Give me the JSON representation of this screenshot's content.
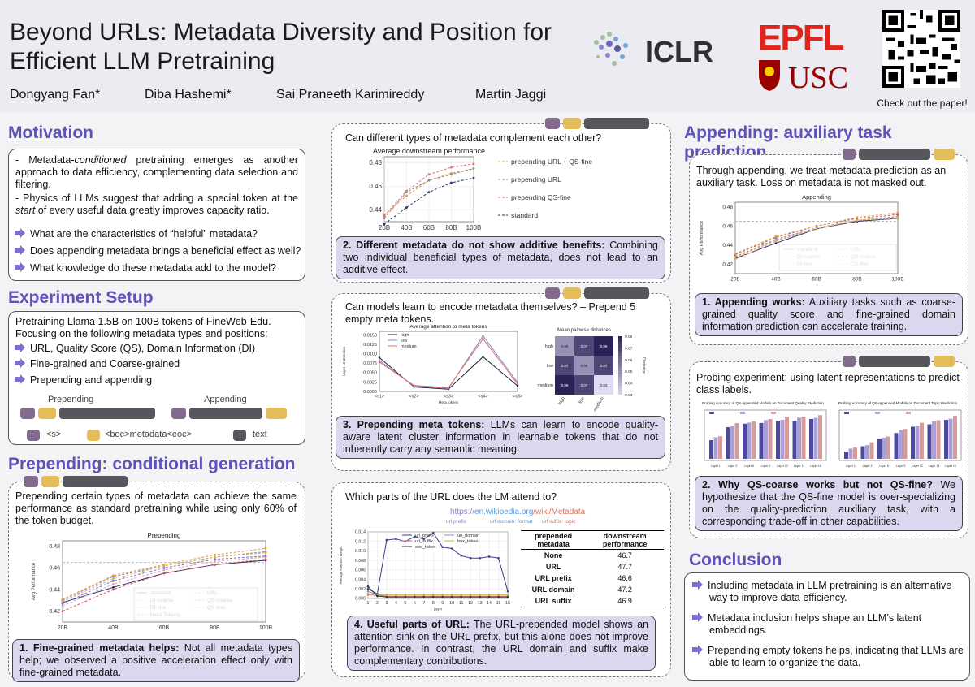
{
  "header": {
    "title_line1": "Beyond URLs: Metadata Diversity and Position for",
    "title_line2": "Efficient LLM Pretraining",
    "authors": [
      "Dongyang Fan*",
      "Diba Hashemi*",
      "Sai Praneeth Karimireddy",
      "Martin Jaggi"
    ],
    "logos": {
      "iclr": "ICLR",
      "epfl": "EPFL",
      "usc": "USC"
    },
    "qr_caption": "Check out the paper!"
  },
  "motivation": {
    "title": "Motivation",
    "p1_a": "- Metadata-",
    "p1_em": "conditioned",
    "p1_b": " pretraining emerges as another approach to data efficiency, complementing data selection and filtering.",
    "p2_a": "- Physics of LLMs suggest that adding a special token at the ",
    "p2_em": "start",
    "p2_b": " of every useful data greatly improves capacity ratio.",
    "questions": [
      "What are the characteristics of “helpful” metadata?",
      "Does appending metadata brings a beneficial effect as well?",
      "What knowledge do these metadata add to the model?"
    ]
  },
  "setup": {
    "title": "Experiment Setup",
    "intro": "Pretraining Llama 1.5B on 100B tokens of FineWeb-Edu. Focusing on the following metadata types and positions:",
    "items": [
      "URL, Quality Score (QS), Domain Information (DI)",
      "Fine-grained and Coarse-grained",
      "Prepending and appending"
    ],
    "prepending_label": "Prepending",
    "appending_label": "Appending",
    "legend_s": "<s>",
    "legend_meta": "<boc>metadata<eoc>",
    "legend_text": "text"
  },
  "prepending": {
    "title": "Prepending: conditional generation",
    "intro": "Prepending certain types of metadata can achieve the same performance as standard pretraining while using only 60% of the token budget.",
    "callout_bold": "1. Fine-grained metadata helps:",
    "callout_rest": " Not all metadata types help; we observed a positive acceleration effect only with fine-grained metadata."
  },
  "complement": {
    "question": "Can different types of metadata complement each other?",
    "callout_bold": "2. Different metadata do not show additive benefits:",
    "callout_rest": " Combining two individual beneficial types of metadata, does not lead to an additive effect."
  },
  "meta_tokens": {
    "question": "Can models learn to encode metadata themselves? – Prepend 5 empty meta tokens.",
    "callout_bold": "3. Prepending meta tokens:",
    "callout_rest": " LLMs can learn to encode quality-aware latent cluster information in learnable tokens that do not inherently carry any semantic meaning."
  },
  "url_attention": {
    "question": "Which parts of the URL does the LM attend to?",
    "url_scheme": "https://",
    "url_domain": "en.wikipedia.org",
    "url_path": "/wiki/Metadata",
    "url_prefix_label": "url prefix",
    "url_domain_label": "url domain: format",
    "url_suffix_label": "url suffix: topic",
    "table_header_1": "prepended metadata",
    "table_header_2": "downstream performance",
    "table_rows": [
      {
        "name": "None",
        "value": "46.7"
      },
      {
        "name": "URL",
        "value": "47.7"
      },
      {
        "name": "URL prefix",
        "value": "46.6"
      },
      {
        "name": "URL domain",
        "value": "47.2"
      },
      {
        "name": "URL suffix",
        "value": "46.9"
      }
    ],
    "callout_bold": "4. Useful parts of URL:",
    "callout_rest": " The URL-prepended model shows an attention sink on the URL prefix, but this alone does not improve performance. In contrast, the URL domain and suffix make complementary contributions."
  },
  "appending": {
    "title": "Appending: auxiliary task prediction",
    "intro": "Through appending, we treat metadata prediction as an auxiliary task. Loss on metadata is not masked out.",
    "callout_bold": "1. Appending works:",
    "callout_rest": " Auxiliary tasks such as coarse-grained quality score and fine-grained domain information prediction can accelerate training."
  },
  "probing": {
    "intro": "Probing experiment: using latent representations to predict class labels.",
    "plot1_title": "Probing Accuracy of QS-appended Models on Document Quality Prediction",
    "plot2_title": "Probing Accuracy of QS-appended Models on Document Topic Prediction",
    "callout_bold": "2. Why QS-coarse works but not QS-fine?",
    "callout_rest": " We hypothesize that the QS-fine model is over-specializing on the quality-prediction auxiliary task, with a corresponding trade-off in other capabilities."
  },
  "conclusion": {
    "title": "Conclusion",
    "items": [
      "Including metadata in LLM pretraining is an alternative way to improve data efficiency.",
      "Metadata inclusion helps shape an LLM’s latent embeddings.",
      "Prepending empty tokens helps, indicating that LLMs are able to learn to organize the data."
    ]
  },
  "colors": {
    "accent": "#5c52b8",
    "callout": "#dcd7ef",
    "chip_s": "#826b8d",
    "chip_meta": "#e2bd5a",
    "chip_text": "#55575c"
  },
  "chart_data": [
    {
      "type": "line",
      "title": "Prepending",
      "xlabel": "",
      "ylabel": "Avg Performance",
      "x": [
        "20B",
        "40B",
        "60B",
        "80B",
        "100B"
      ],
      "ylim": [
        0.41,
        0.485
      ],
      "yticks": [
        "0.42",
        "0.44",
        "0.46",
        "0.48"
      ],
      "series": [
        {
          "name": "standard",
          "values": [
            0.428,
            0.442,
            0.455,
            0.463,
            0.467
          ],
          "color": "#2b2d6e"
        },
        {
          "name": "URL",
          "values": [
            0.43,
            0.452,
            0.462,
            0.47,
            0.475
          ],
          "color": "#8b87c9"
        },
        {
          "name": "DI-coarse",
          "values": [
            0.425,
            0.445,
            0.458,
            0.466,
            0.47
          ],
          "color": "#e9a0a0"
        },
        {
          "name": "QS-coarse",
          "values": [
            0.42,
            0.44,
            0.455,
            0.463,
            0.468
          ],
          "color": "#c25a5a"
        },
        {
          "name": "DI-fine",
          "values": [
            0.431,
            0.453,
            0.463,
            0.472,
            0.478
          ],
          "color": "#e59a4a"
        },
        {
          "name": "QS-fine",
          "values": [
            0.429,
            0.45,
            0.462,
            0.47,
            0.474
          ],
          "color": "#c8b84a"
        },
        {
          "name": "Meta Tokens",
          "values": [
            0.427,
            0.448,
            0.46,
            0.468,
            0.471
          ],
          "color": "#7d6fd1"
        }
      ]
    },
    {
      "type": "line",
      "title": "Average downstream performance",
      "x": [
        "20B",
        "40B",
        "60B",
        "80B",
        "100B"
      ],
      "ylim": [
        0.43,
        0.485
      ],
      "yticks": [
        "0.44",
        "0.46",
        "0.48"
      ],
      "series": [
        {
          "name": "prepending URL + QS-fine",
          "values": [
            0.436,
            0.452,
            0.465,
            0.471,
            0.475
          ],
          "color": "#e59a4a"
        },
        {
          "name": "prepending URL",
          "values": [
            0.433,
            0.455,
            0.465,
            0.47,
            0.475
          ],
          "color": "#888888"
        },
        {
          "name": "prepending QS-fine",
          "values": [
            0.435,
            0.456,
            0.47,
            0.476,
            0.479
          ],
          "color": "#e07070"
        },
        {
          "name": "standard",
          "values": [
            0.428,
            0.442,
            0.455,
            0.463,
            0.467
          ],
          "color": "#2b2d6e"
        }
      ]
    },
    {
      "type": "line",
      "title": "Average attention to meta tokens",
      "xlabel": "Meta tokens",
      "ylabel": "Layer 16 attention",
      "x": [
        "<s1>",
        "<s2>",
        "<s3>",
        "<s4>",
        "<s5>"
      ],
      "ylim": [
        0,
        0.016
      ],
      "yticks": [
        "0.0000",
        "0.0025",
        "0.0050",
        "0.0075",
        "0.0100",
        "0.0125",
        "0.0150"
      ],
      "series": [
        {
          "name": "high",
          "values": [
            0.009,
            0.0012,
            0.0006,
            0.0092,
            0.0015
          ],
          "color": "#1d1f3a"
        },
        {
          "name": "low",
          "values": [
            0.0082,
            0.0014,
            0.0008,
            0.0148,
            0.0024
          ],
          "color": "#8b87c9"
        },
        {
          "name": "medium",
          "values": [
            0.0078,
            0.0016,
            0.001,
            0.014,
            0.002
          ],
          "color": "#e07070"
        }
      ]
    },
    {
      "type": "heatmap",
      "title": "Mean pairwise distances",
      "ylabel": "Distance",
      "x": [
        "high",
        "low",
        "medium"
      ],
      "y": [
        "high",
        "low",
        "medium"
      ],
      "values": [
        [
          "0.05",
          "0.07",
          "0.08"
        ],
        [
          "0.07",
          "0.05",
          "0.07"
        ],
        [
          "0.08",
          "0.07",
          "0.03"
        ]
      ],
      "colorbar": [
        "0.08",
        "0.07",
        "0.06",
        "0.05",
        "0.04",
        "0.03"
      ]
    },
    {
      "type": "line",
      "xlabel": "Layer",
      "ylabel": "Average Attention Weight",
      "x": [
        1,
        2,
        3,
        4,
        5,
        6,
        7,
        8,
        9,
        10,
        11,
        12,
        13,
        14,
        15,
        16
      ],
      "ylim": [
        0,
        0.014
      ],
      "yticks": [
        "0.000",
        "0.002",
        "0.004",
        "0.006",
        "0.008",
        "0.010",
        "0.012",
        "0.014"
      ],
      "series": [
        {
          "name": "url_prefix",
          "values": [
            0.002,
            0.001,
            0.0123,
            0.0125,
            0.012,
            0.013,
            0.0125,
            0.0138,
            0.0108,
            0.0105,
            0.009,
            0.0085,
            0.0085,
            0.0088,
            0.0085,
            0.0015
          ],
          "color": "#3b3f8f"
        },
        {
          "name": "url_domain",
          "values": [
            0.0015,
            0.0008,
            0.0005,
            0.0005,
            0.0005,
            0.0005,
            0.0005,
            0.0005,
            0.0005,
            0.0005,
            0.0005,
            0.0005,
            0.0005,
            0.0005,
            0.0005,
            0.0005
          ],
          "color": "#8b87c9"
        },
        {
          "name": "url_suffix",
          "values": [
            0.0008,
            0.0006,
            0.0004,
            0.0004,
            0.0004,
            0.0004,
            0.0004,
            0.0004,
            0.0004,
            0.0004,
            0.0004,
            0.0004,
            0.0004,
            0.0004,
            0.0004,
            0.0004
          ],
          "color": "#e07070"
        },
        {
          "name": "box_token",
          "values": [
            0.001,
            0.0009,
            0.0008,
            0.0008,
            0.0008,
            0.0008,
            0.0008,
            0.0008,
            0.0008,
            0.0008,
            0.0008,
            0.0008,
            0.0008,
            0.0008,
            0.0008,
            0.0008
          ],
          "color": "#c8b84a"
        },
        {
          "name": "eoc_token",
          "values": [
            0.0025,
            0.0005,
            0.0003,
            0.0003,
            0.0003,
            0.0003,
            0.0003,
            0.0003,
            0.0003,
            0.0003,
            0.0003,
            0.0003,
            0.0003,
            0.0003,
            0.0003,
            0.0003
          ],
          "color": "#333333"
        }
      ]
    },
    {
      "type": "line",
      "title": "Appending",
      "ylabel": "Avg Performance",
      "x": [
        "20B",
        "40B",
        "60B",
        "80B",
        "100B"
      ],
      "ylim": [
        0.41,
        0.485
      ],
      "yticks": [
        "0.42",
        "0.44",
        "0.46",
        "0.48"
      ],
      "series": [
        {
          "name": "standard",
          "values": [
            0.426,
            0.442,
            0.457,
            0.465,
            0.468
          ],
          "color": "#2b2d6e"
        },
        {
          "name": "URL",
          "values": [
            0.428,
            0.446,
            0.458,
            0.466,
            0.47
          ],
          "color": "#8b87c9"
        },
        {
          "name": "DI-coarse",
          "values": [
            0.425,
            0.444,
            0.457,
            0.466,
            0.469
          ],
          "color": "#e9a0a0"
        },
        {
          "name": "QS-coarse",
          "values": [
            0.43,
            0.448,
            0.46,
            0.468,
            0.472
          ],
          "color": "#c25a5a"
        },
        {
          "name": "DI-fine",
          "values": [
            0.431,
            0.449,
            0.46,
            0.469,
            0.474
          ],
          "color": "#e59a4a"
        },
        {
          "name": "QS-fine",
          "values": [
            0.427,
            0.445,
            0.457,
            0.466,
            0.468
          ],
          "color": "#c8b84a"
        }
      ]
    }
  ]
}
